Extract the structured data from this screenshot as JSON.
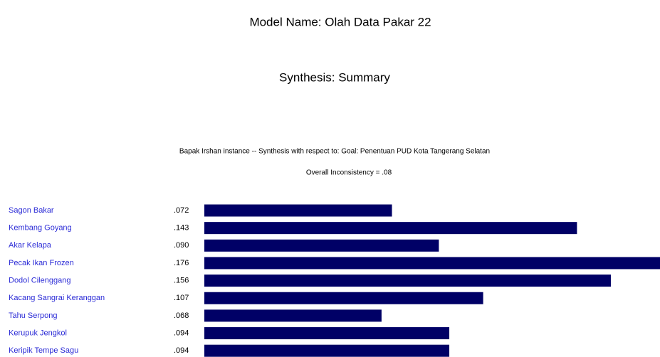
{
  "chart_data": {
    "type": "bar",
    "orientation": "horizontal",
    "title": "Model Name: Olah Data Pakar 22",
    "subtitle": "Synthesis: Summary",
    "description": "Bapak Irshan instance -- Synthesis with respect to: Goal: Penentuan PUD Kota Tangerang Selatan",
    "annotation": "Overall Inconsistency = .08",
    "categories": [
      "Sagon Bakar",
      "Kembang Goyang",
      "Akar Kelapa",
      "Pecak Ikan Frozen",
      "Dodol Cilenggang",
      "Kacang Sangrai Keranggan",
      "Tahu Serpong",
      "Kerupuk Jengkol",
      "Keripik Tempe Sagu"
    ],
    "values": [
      0.072,
      0.143,
      0.09,
      0.176,
      0.156,
      0.107,
      0.068,
      0.094,
      0.094
    ],
    "value_labels": [
      ".072",
      ".143",
      ".090",
      ".176",
      ".156",
      ".107",
      ".068",
      ".094",
      ".094"
    ],
    "color": "#000066"
  }
}
